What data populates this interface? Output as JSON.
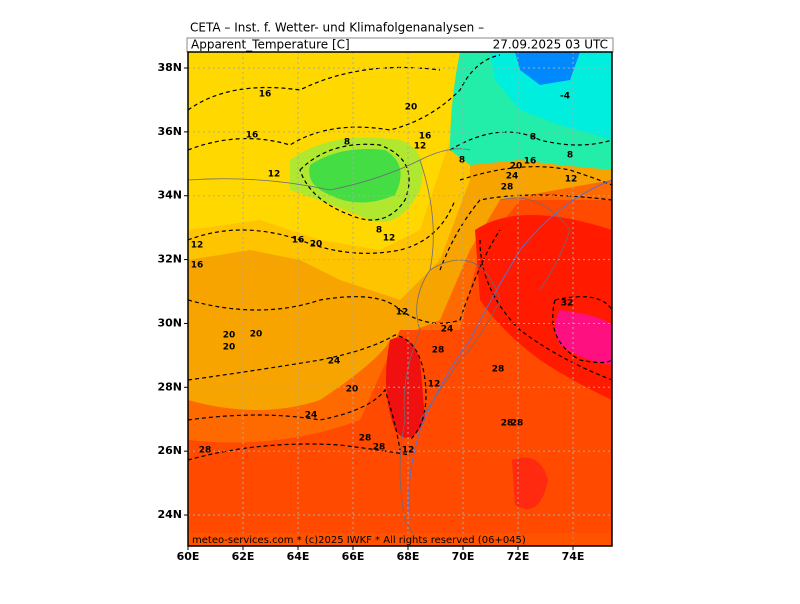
{
  "header": {
    "title": "CETA – Inst. f. Wetter- und Klimafolgenanalysen –",
    "variable": "Apparent_Temperature [C]",
    "valid_time": "27.09.2025 03 UTC"
  },
  "footer": "meteo-services.com * (c)2025 IWKF * All rights reserved (06+045)",
  "lat_labels": [
    "38N",
    "36N",
    "34N",
    "32N",
    "30N",
    "28N",
    "26N",
    "24N"
  ],
  "lon_labels": [
    "60E",
    "62E",
    "64E",
    "66E",
    "68E",
    "70E",
    "72E",
    "74E"
  ],
  "contour_labels": [
    "16",
    "16",
    "20",
    "16",
    "12",
    "8",
    "8",
    "8",
    "-4",
    "20",
    "16",
    "24",
    "28",
    "12",
    "8",
    "12",
    "8",
    "12",
    "16",
    "20",
    "12",
    "16",
    "32",
    "12",
    "24",
    "28",
    "20",
    "20",
    "20",
    "24",
    "28",
    "12",
    "20",
    "24",
    "28",
    "28",
    "28",
    "28",
    "12",
    "28"
  ]
}
